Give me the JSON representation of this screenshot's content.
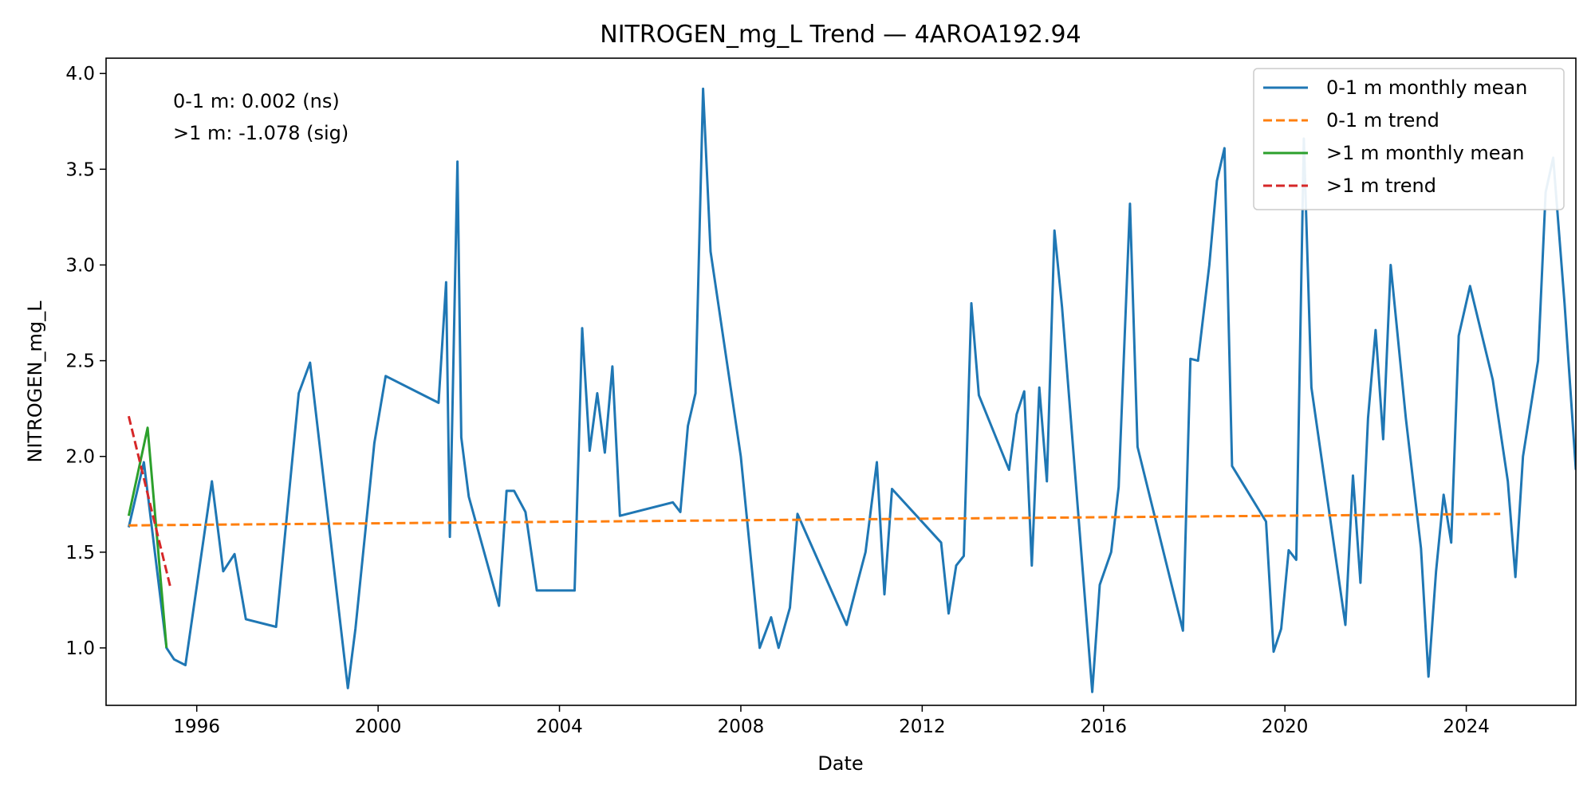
{
  "chart_data": {
    "type": "line",
    "title": "NITROGEN_mg_L Trend — 4AROA192.94",
    "xlabel": "Date",
    "ylabel": "NITROGEN_mg_L",
    "xlim": [
      "1994-01-01",
      "2026-06-01"
    ],
    "ylim": [
      0.7,
      4.08
    ],
    "x_ticks": [
      "1996",
      "2000",
      "2004",
      "2008",
      "2012",
      "2016",
      "2020",
      "2024"
    ],
    "y_ticks": [
      "1.0",
      "1.5",
      "2.0",
      "2.5",
      "3.0",
      "3.5",
      "4.0"
    ],
    "grid": false,
    "legend_position": "top-right",
    "annotations": [
      "0-1 m: 0.002 (ns)",
      ">1 m: -1.078 (sig)"
    ],
    "series": [
      {
        "name": "0-1 m monthly mean",
        "color": "#1f77b4",
        "style": "solid",
        "points": [
          [
            "1994-07-01",
            1.63
          ],
          [
            "1994-11-01",
            1.97
          ],
          [
            "1995-05-01",
            1.0
          ],
          [
            "1995-07-01",
            0.94
          ],
          [
            "1995-10-01",
            0.91
          ],
          [
            "1996-05-01",
            1.87
          ],
          [
            "1996-08-01",
            1.4
          ],
          [
            "1996-11-01",
            1.49
          ],
          [
            "1997-02-01",
            1.15
          ],
          [
            "1997-10-01",
            1.11
          ],
          [
            "1998-04-01",
            2.33
          ],
          [
            "1998-07-01",
            2.49
          ],
          [
            "1999-05-01",
            0.79
          ],
          [
            "1999-07-01",
            1.1
          ],
          [
            "1999-09-01",
            1.49
          ],
          [
            "1999-12-01",
            2.07
          ],
          [
            "2000-03-01",
            2.42
          ],
          [
            "2001-05-01",
            2.28
          ],
          [
            "2001-07-01",
            2.91
          ],
          [
            "2001-08-01",
            1.58
          ],
          [
            "2001-10-01",
            3.54
          ],
          [
            "2001-11-01",
            2.1
          ],
          [
            "2002-01-01",
            1.79
          ],
          [
            "2002-09-01",
            1.22
          ],
          [
            "2002-11-01",
            1.82
          ],
          [
            "2003-01-01",
            1.82
          ],
          [
            "2003-04-01",
            1.71
          ],
          [
            "2003-07-01",
            1.3
          ],
          [
            "2004-05-01",
            1.3
          ],
          [
            "2004-07-01",
            2.67
          ],
          [
            "2004-09-01",
            2.03
          ],
          [
            "2004-11-01",
            2.33
          ],
          [
            "2005-01-01",
            2.02
          ],
          [
            "2005-03-01",
            2.47
          ],
          [
            "2005-05-01",
            1.69
          ],
          [
            "2006-07-01",
            1.76
          ],
          [
            "2006-09-01",
            1.71
          ],
          [
            "2006-11-01",
            2.16
          ],
          [
            "2007-01-01",
            2.33
          ],
          [
            "2007-03-01",
            3.92
          ],
          [
            "2007-05-01",
            3.07
          ],
          [
            "2008-01-01",
            2.0
          ],
          [
            "2008-06-01",
            1.0
          ],
          [
            "2008-09-01",
            1.16
          ],
          [
            "2008-11-01",
            1.0
          ],
          [
            "2009-02-01",
            1.21
          ],
          [
            "2009-04-01",
            1.7
          ],
          [
            "2010-05-01",
            1.12
          ],
          [
            "2010-08-01",
            1.35
          ],
          [
            "2010-10-01",
            1.5
          ],
          [
            "2011-01-01",
            1.97
          ],
          [
            "2011-03-01",
            1.28
          ],
          [
            "2011-05-01",
            1.83
          ],
          [
            "2012-06-01",
            1.55
          ],
          [
            "2012-08-01",
            1.18
          ],
          [
            "2012-10-01",
            1.43
          ],
          [
            "2012-12-01",
            1.48
          ],
          [
            "2013-02-01",
            2.8
          ],
          [
            "2013-04-01",
            2.32
          ],
          [
            "2013-12-01",
            1.93
          ],
          [
            "2014-02-01",
            2.22
          ],
          [
            "2014-04-01",
            2.34
          ],
          [
            "2014-06-01",
            1.43
          ],
          [
            "2014-08-01",
            2.36
          ],
          [
            "2014-10-01",
            1.87
          ],
          [
            "2014-12-01",
            3.18
          ],
          [
            "2015-02-01",
            2.78
          ],
          [
            "2015-10-01",
            0.77
          ],
          [
            "2015-12-01",
            1.33
          ],
          [
            "2016-03-01",
            1.5
          ],
          [
            "2016-05-01",
            1.84
          ],
          [
            "2016-08-01",
            3.32
          ],
          [
            "2016-10-01",
            2.05
          ],
          [
            "2017-10-01",
            1.09
          ],
          [
            "2017-12-01",
            2.51
          ],
          [
            "2018-02-01",
            2.5
          ],
          [
            "2018-05-01",
            3.0
          ],
          [
            "2018-07-01",
            3.44
          ],
          [
            "2018-09-01",
            3.61
          ],
          [
            "2018-11-01",
            1.95
          ],
          [
            "2019-08-01",
            1.66
          ],
          [
            "2019-10-01",
            0.98
          ],
          [
            "2019-12-01",
            1.1
          ],
          [
            "2020-02-01",
            1.51
          ],
          [
            "2020-04-01",
            1.46
          ],
          [
            "2020-06-01",
            3.66
          ],
          [
            "2020-08-01",
            2.36
          ],
          [
            "2021-05-01",
            1.12
          ],
          [
            "2021-07-01",
            1.9
          ],
          [
            "2021-09-01",
            1.34
          ],
          [
            "2021-11-01",
            2.2
          ],
          [
            "2022-01-01",
            2.66
          ],
          [
            "2022-03-01",
            2.09
          ],
          [
            "2022-05-01",
            3.0
          ],
          [
            "2022-09-01",
            2.2
          ],
          [
            "2023-01-01",
            1.52
          ],
          [
            "2023-03-01",
            0.85
          ],
          [
            "2023-05-01",
            1.4
          ],
          [
            "2023-07-01",
            1.8
          ],
          [
            "2023-09-01",
            1.55
          ],
          [
            "2023-11-01",
            2.63
          ],
          [
            "2024-02-01",
            2.89
          ],
          [
            "2024-08-01",
            2.4
          ],
          [
            "2024-12-01",
            1.87
          ],
          [
            "2025-02-01",
            1.37
          ],
          [
            "2025-04-01",
            2.0
          ],
          [
            "2025-08-01",
            2.5
          ],
          [
            "2025-10-01",
            3.38
          ],
          [
            "2025-12-01",
            3.56
          ],
          [
            "2026-03-01",
            2.8
          ],
          [
            "2026-06-01",
            1.93
          ]
        ]
      },
      {
        "name": "0-1 m trend",
        "color": "#ff7f0e",
        "style": "dashed",
        "points": [
          [
            "1994-07-01",
            1.64
          ],
          [
            "2024-10-01",
            1.7
          ]
        ]
      },
      {
        "name": ">1 m monthly mean",
        "color": "#2ca02c",
        "style": "solid",
        "points": [
          [
            "1994-07-01",
            1.69
          ],
          [
            "1994-12-01",
            2.15
          ],
          [
            "1995-05-01",
            1.0
          ]
        ]
      },
      {
        "name": ">1 m trend",
        "color": "#d62728",
        "style": "dashed",
        "points": [
          [
            "1994-07-01",
            2.21
          ],
          [
            "1995-06-01",
            1.32
          ]
        ]
      }
    ]
  }
}
